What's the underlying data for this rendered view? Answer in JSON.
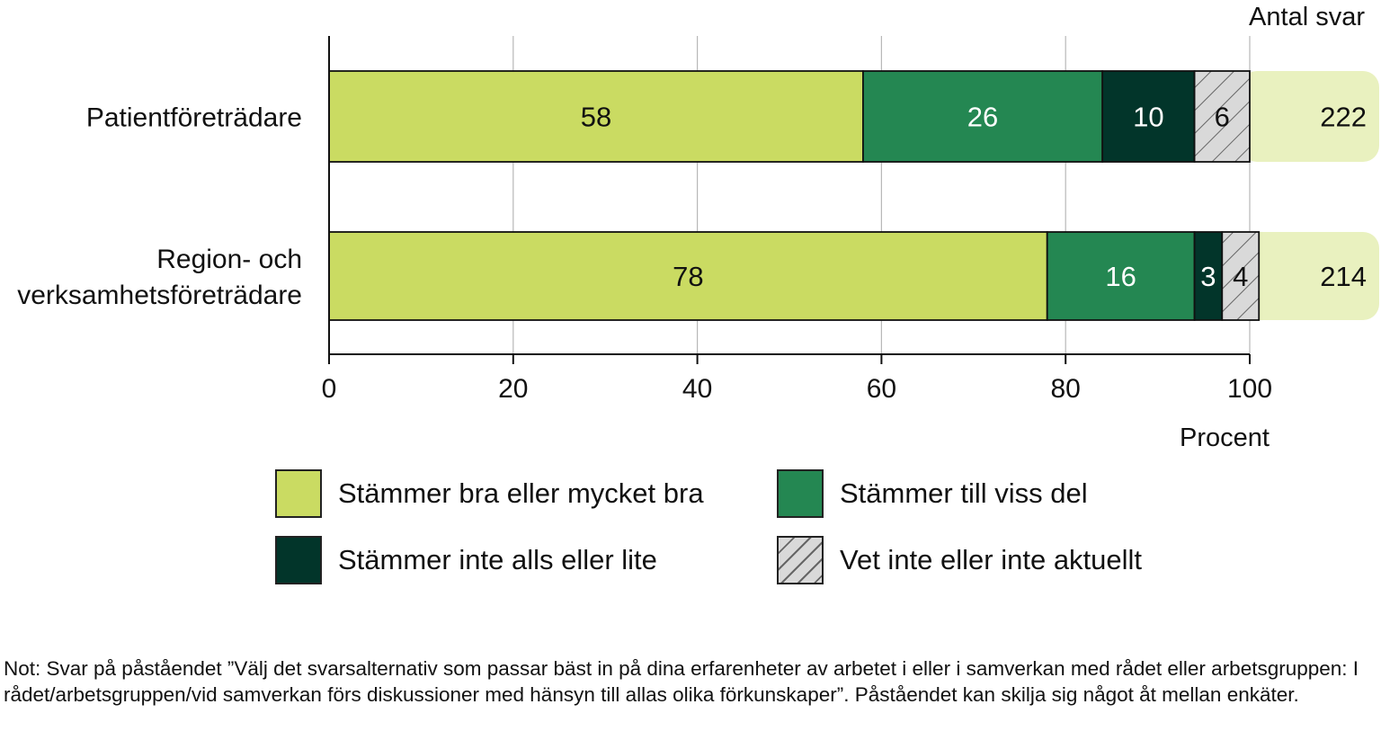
{
  "chart_data": {
    "type": "bar",
    "orientation": "horizontal",
    "stacked": true,
    "categories": [
      "Patientföreträdare",
      "Region- och verksamhetsföreträdare"
    ],
    "category_lines": [
      [
        "Patientföreträdare"
      ],
      [
        "Region- och",
        "verksamhetsföreträdare"
      ]
    ],
    "series": [
      {
        "name": "Stämmer bra eller mycket bra",
        "values": [
          58,
          78
        ],
        "color": "#cadb62",
        "label_color": "#111111"
      },
      {
        "name": "Stämmer till viss del",
        "values": [
          26,
          16
        ],
        "color": "#248752",
        "label_color": "#ffffff"
      },
      {
        "name": "Stämmer inte alls eller lite",
        "values": [
          10,
          3
        ],
        "color": "#02352a",
        "label_color": "#ffffff"
      },
      {
        "name": "Vet inte eller inte aktuellt",
        "values": [
          6,
          4
        ],
        "color": "#d9d9d9",
        "pattern": "hatch",
        "label_color": "#111111"
      }
    ],
    "counts": {
      "title": "Antal svar",
      "values": [
        222,
        214
      ],
      "color": "#e9f1bf"
    },
    "xlabel": "Procent",
    "xlim": [
      0,
      100
    ],
    "xticks": [
      0,
      20,
      40,
      60,
      80,
      100
    ],
    "grid": true,
    "legend_position": "bottom"
  },
  "legend_items": [
    {
      "label": "Stämmer bra eller mycket bra",
      "color": "#cadb62"
    },
    {
      "label": "Stämmer till viss del",
      "color": "#248752"
    },
    {
      "label": "Stämmer inte alls eller lite",
      "color": "#02352a"
    },
    {
      "label": "Vet inte eller inte aktuellt",
      "color": "#d9d9d9",
      "pattern": "hatch"
    }
  ],
  "note": "Not: Svar på påståendet ”Välj det svarsalternativ som passar bäst in på dina erfarenheter av arbetet i eller i samverkan med rådet eller arbetsgruppen: I rådet/arbetsgruppen/vid samverkan förs diskussioner med hänsyn till allas olika förkunskaper”. Påståendet kan skilja sig något åt mellan enkäter."
}
